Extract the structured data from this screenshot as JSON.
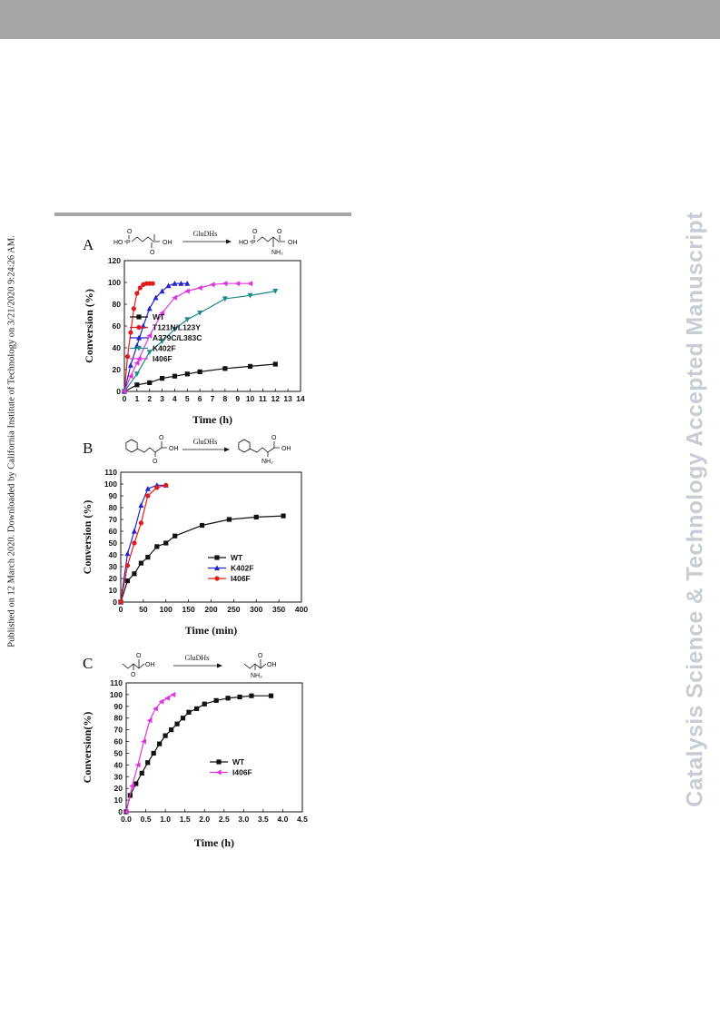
{
  "page": {
    "side_text": "Published on 12 March 2020. Downloaded by California Institute of Technology on 3/21/2020 9:24:26 AM.",
    "watermark": "Catalysis Science & Technology Accepted Manuscript"
  },
  "chart_data": [
    {
      "type": "line",
      "panel": "A",
      "scheme": {
        "arrow_label": "GluDHs",
        "substrate_labels": [
          "HO",
          "P",
          "O",
          "O",
          "OH"
        ],
        "product_labels": [
          "HO",
          "P",
          "O",
          "O",
          "OH",
          "NH₂"
        ]
      },
      "xlabel": "Time (h)",
      "ylabel": "Conversion (%)",
      "xlim": [
        0,
        14
      ],
      "ylim": [
        0,
        120
      ],
      "xticks": [
        0,
        1,
        2,
        3,
        4,
        5,
        6,
        7,
        8,
        9,
        10,
        11,
        12,
        13,
        14
      ],
      "yticks": [
        0,
        20,
        40,
        60,
        80,
        100,
        120
      ],
      "legend_position": "center-left",
      "series": [
        {
          "name": "WT",
          "color": "#111111",
          "marker": "square",
          "x": [
            0,
            1,
            2,
            3,
            4,
            5,
            6,
            8,
            10,
            12
          ],
          "y": [
            0,
            6,
            8,
            12,
            14,
            16,
            18,
            21,
            23,
            25
          ]
        },
        {
          "name": "T121N/L123Y",
          "color": "#e01c1c",
          "marker": "circle",
          "x": [
            0,
            0.25,
            0.5,
            0.75,
            1,
            1.25,
            1.5,
            1.75,
            2,
            2.25
          ],
          "y": [
            0,
            32,
            54,
            76,
            90,
            95,
            98,
            99,
            99,
            99
          ]
        },
        {
          "name": "A379C/L383C",
          "color": "#2323c8",
          "marker": "triangle-up",
          "x": [
            0,
            0.5,
            1,
            1.5,
            2,
            2.5,
            3,
            3.5,
            4,
            4.5,
            5
          ],
          "y": [
            0,
            24,
            42,
            60,
            76,
            86,
            92,
            97,
            99,
            99,
            99
          ]
        },
        {
          "name": "K402F",
          "color": "#1f8a8a",
          "marker": "triangle-down",
          "x": [
            0,
            1,
            2,
            3,
            4,
            5,
            6,
            8,
            10,
            12
          ],
          "y": [
            0,
            16,
            36,
            46,
            57,
            66,
            72,
            85,
            88,
            92
          ]
        },
        {
          "name": "I406F",
          "color": "#e033e0",
          "marker": "triangle-left",
          "x": [
            0,
            0.5,
            1,
            2,
            3,
            4,
            5,
            6,
            7,
            8,
            9,
            10
          ],
          "y": [
            0,
            14,
            26,
            51,
            72,
            86,
            92,
            95,
            98,
            99,
            99,
            99
          ]
        }
      ]
    },
    {
      "type": "line",
      "panel": "B",
      "scheme": {
        "arrow_label": "GluDHs",
        "substrate_labels": [
          "O",
          "OH",
          "O"
        ],
        "product_labels": [
          "O",
          "OH",
          "NH₂"
        ]
      },
      "xlabel": "Time (min)",
      "ylabel": "Conversion (%)",
      "xlim": [
        0,
        400
      ],
      "ylim": [
        0,
        110
      ],
      "xticks": [
        0,
        50,
        100,
        150,
        200,
        250,
        300,
        350,
        400
      ],
      "yticks": [
        0,
        10,
        20,
        30,
        40,
        50,
        60,
        70,
        80,
        90,
        100,
        110
      ],
      "legend_position": "center-right",
      "series": [
        {
          "name": "WT",
          "color": "#111111",
          "marker": "square",
          "x": [
            0,
            15,
            30,
            45,
            60,
            80,
            100,
            120,
            180,
            240,
            300,
            360
          ],
          "y": [
            0,
            18,
            24,
            33,
            38,
            47,
            50,
            56,
            65,
            70,
            72,
            73
          ]
        },
        {
          "name": "K402F",
          "color": "#2323c8",
          "marker": "triangle-up",
          "x": [
            0,
            15,
            30,
            45,
            60,
            80,
            100
          ],
          "y": [
            0,
            41,
            60,
            82,
            96,
            99,
            99
          ]
        },
        {
          "name": "I406F",
          "color": "#e01c1c",
          "marker": "circle",
          "x": [
            0,
            15,
            30,
            45,
            60,
            80,
            100
          ],
          "y": [
            0,
            31,
            50,
            67,
            90,
            97,
            99
          ]
        }
      ]
    },
    {
      "type": "line",
      "panel": "C",
      "scheme": {
        "arrow_label": "GluDHs",
        "substrate_labels": [
          "O",
          "OH",
          "O"
        ],
        "product_labels": [
          "O",
          "OH",
          "NH₂"
        ]
      },
      "xlabel": "Time (h)",
      "ylabel": "Conversion(%)",
      "xlim": [
        0,
        4.5
      ],
      "ylim": [
        0,
        110
      ],
      "xticks": [
        0.0,
        0.5,
        1.0,
        1.5,
        2.0,
        2.5,
        3.0,
        3.5,
        4.0,
        4.5
      ],
      "xtick_labels": [
        "0.0",
        "0.5",
        "1.0",
        "1.5",
        "2.0",
        "2.5",
        "3.0",
        "3.5",
        "4.0",
        "4.5"
      ],
      "yticks": [
        0,
        10,
        20,
        30,
        40,
        50,
        60,
        70,
        80,
        90,
        100,
        110
      ],
      "legend_position": "center-right",
      "series": [
        {
          "name": "WT",
          "color": "#111111",
          "marker": "square",
          "x": [
            0,
            0.1,
            0.25,
            0.4,
            0.55,
            0.7,
            0.85,
            1.0,
            1.15,
            1.3,
            1.45,
            1.6,
            1.8,
            2.0,
            2.3,
            2.6,
            2.9,
            3.2,
            3.7
          ],
          "y": [
            0,
            14,
            24,
            33,
            42,
            50,
            58,
            65,
            70,
            75,
            80,
            85,
            88,
            92,
            95,
            97,
            98,
            99,
            99
          ]
        },
        {
          "name": "I406F",
          "color": "#e033e0",
          "marker": "triangle-left",
          "x": [
            0,
            0.15,
            0.3,
            0.45,
            0.6,
            0.75,
            0.9,
            1.05,
            1.2
          ],
          "y": [
            0,
            22,
            40,
            60,
            78,
            88,
            94,
            97,
            100
          ]
        }
      ]
    }
  ]
}
